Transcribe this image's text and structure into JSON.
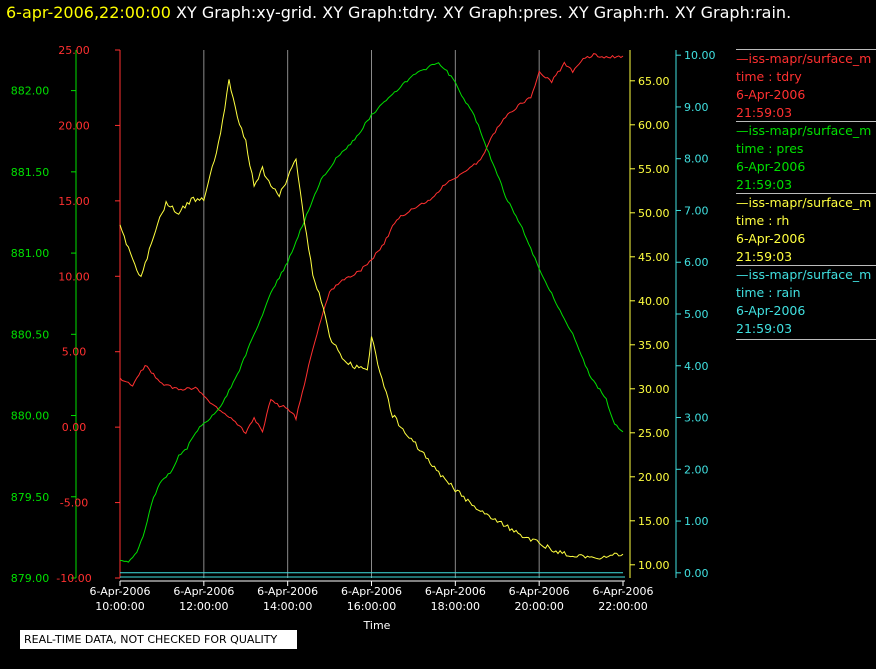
{
  "header": {
    "timestamp": "6-apr-2006,22:00:00",
    "graphs": "XY Graph:xy-grid.  XY Graph:tdry.  XY Graph:pres.  XY Graph:rh.  XY Graph:rain."
  },
  "legend": [
    {
      "name": "—iss-mapr/surface_m",
      "var": "time : tdry",
      "date": "6-Apr-2006",
      "time": "21:59:03",
      "color": "#ff3030"
    },
    {
      "name": "—iss-mapr/surface_m",
      "var": "time : pres",
      "date": "6-Apr-2006",
      "time": "21:59:03",
      "color": "#00e000"
    },
    {
      "name": "—iss-mapr/surface_m",
      "var": "time : rh",
      "date": "6-Apr-2006",
      "time": "21:59:03",
      "color": "#ffff40"
    },
    {
      "name": "—iss-mapr/surface_m",
      "var": "time : rain",
      "date": "6-Apr-2006",
      "time": "21:59:03",
      "color": "#40e0e0"
    }
  ],
  "note": "REAL-TIME DATA, NOT CHECKED FOR QUALITY",
  "chart_data": {
    "type": "line",
    "xlabel": "Time",
    "xlim_hours": [
      10,
      22
    ],
    "x_ticks": [
      {
        "hour": 10,
        "date": "6-Apr-2006",
        "time": "10:00:00"
      },
      {
        "hour": 12,
        "date": "6-Apr-2006",
        "time": "12:00:00"
      },
      {
        "hour": 14,
        "date": "6-Apr-2006",
        "time": "14:00:00"
      },
      {
        "hour": 16,
        "date": "6-Apr-2006",
        "time": "16:00:00"
      },
      {
        "hour": 18,
        "date": "6-Apr-2006",
        "time": "18:00:00"
      },
      {
        "hour": 20,
        "date": "6-Apr-2006",
        "time": "20:00:00"
      },
      {
        "hour": 22,
        "date": "6-Apr-2006",
        "time": "22:00:00"
      }
    ],
    "grid": "vertical",
    "axes": {
      "pres": {
        "color": "#00e000",
        "ylim": [
          879.0,
          882.25
        ],
        "ticks": [
          "879.00",
          "879.50",
          "880.00",
          "880.50",
          "881.00",
          "881.50",
          "882.00"
        ]
      },
      "tdry": {
        "color": "#ff3030",
        "ylim": [
          -10,
          25
        ],
        "ticks": [
          "-10.00",
          "-5.00",
          "0.00",
          "5.00",
          "10.00",
          "15.00",
          "20.00",
          "25.00"
        ]
      },
      "rh": {
        "color": "#ffff40",
        "ylim": [
          8.5,
          68.5
        ],
        "ticks": [
          "10.00",
          "15.00",
          "20.00",
          "25.00",
          "30.00",
          "35.00",
          "40.00",
          "45.00",
          "50.00",
          "55.00",
          "60.00",
          "65.00"
        ]
      },
      "rain": {
        "color": "#40e0e0",
        "ylim": [
          -0.1,
          10.1
        ],
        "ticks": [
          "0.00",
          "1.00",
          "2.00",
          "3.00",
          "4.00",
          "5.00",
          "6.00",
          "7.00",
          "8.00",
          "9.00",
          "10.00"
        ]
      }
    },
    "series": [
      {
        "name": "tdry",
        "axis": "tdry",
        "color": "#ff3030",
        "x": [
          10.0,
          10.3,
          10.6,
          11.0,
          11.4,
          11.8,
          12.1,
          12.4,
          12.7,
          13.0,
          13.2,
          13.4,
          13.6,
          13.8,
          14.0,
          14.2,
          14.4,
          14.7,
          15.0,
          15.3,
          15.7,
          16.0,
          16.3,
          16.6,
          17.0,
          17.4,
          17.8,
          18.2,
          18.6,
          18.9,
          19.2,
          19.5,
          19.8,
          20.0,
          20.3,
          20.6,
          20.8,
          21.0,
          21.3,
          21.6,
          22.0
        ],
        "y": [
          3.2,
          2.8,
          4.1,
          2.9,
          2.5,
          2.6,
          1.8,
          1.1,
          0.5,
          -0.4,
          0.6,
          -0.3,
          1.9,
          1.4,
          1.3,
          0.6,
          2.9,
          6.2,
          9.0,
          9.7,
          10.3,
          11.1,
          12.2,
          13.8,
          14.5,
          15.1,
          16.2,
          16.9,
          17.7,
          19.4,
          20.6,
          21.3,
          21.9,
          23.5,
          22.9,
          24.1,
          23.6,
          24.3,
          24.7,
          24.5,
          24.6
        ]
      },
      {
        "name": "pres",
        "axis": "pres",
        "color": "#00e000",
        "x": [
          10.0,
          10.2,
          10.4,
          10.6,
          10.8,
          11.0,
          11.2,
          11.4,
          11.6,
          11.8,
          12.0,
          12.4,
          12.8,
          13.2,
          13.6,
          14.0,
          14.4,
          14.8,
          15.2,
          15.6,
          16.0,
          16.4,
          16.8,
          17.0,
          17.2,
          17.4,
          17.6,
          17.8,
          18.0,
          18.2,
          18.4,
          18.6,
          18.9,
          19.2,
          19.6,
          20.0,
          20.4,
          20.8,
          21.2,
          21.6,
          21.8,
          22.0
        ],
        "y": [
          879.1,
          879.1,
          879.15,
          879.3,
          879.5,
          879.6,
          879.65,
          879.75,
          879.8,
          879.9,
          879.95,
          880.05,
          880.25,
          880.5,
          880.75,
          880.95,
          881.2,
          881.45,
          881.6,
          881.7,
          881.85,
          881.95,
          882.05,
          882.1,
          882.12,
          882.15,
          882.17,
          882.12,
          882.05,
          881.95,
          881.88,
          881.75,
          881.55,
          881.35,
          881.15,
          880.9,
          880.7,
          880.5,
          880.25,
          880.1,
          879.95,
          879.9
        ]
      },
      {
        "name": "rh",
        "axis": "rh",
        "color": "#ffff40",
        "x": [
          10.0,
          10.2,
          10.5,
          10.8,
          11.1,
          11.4,
          11.7,
          12.0,
          12.2,
          12.4,
          12.6,
          12.8,
          13.0,
          13.2,
          13.4,
          13.6,
          13.8,
          14.0,
          14.2,
          14.4,
          14.6,
          14.8,
          15.0,
          15.3,
          15.6,
          15.9,
          16.0,
          16.2,
          16.5,
          17.0,
          17.5,
          18.0,
          18.5,
          19.0,
          19.5,
          20.0,
          20.4,
          20.8,
          21.2,
          21.6,
          22.0
        ],
        "y": [
          48.5,
          46.0,
          42.5,
          47.5,
          51.0,
          50.0,
          51.5,
          51.5,
          55.0,
          59.0,
          65.0,
          61.0,
          58.0,
          53.0,
          55.0,
          53.0,
          52.0,
          54.0,
          56.0,
          49.0,
          43.0,
          40.0,
          36.0,
          33.5,
          32.5,
          32.0,
          36.0,
          32.0,
          27.0,
          24.0,
          21.0,
          18.5,
          16.5,
          15.0,
          13.5,
          12.5,
          11.5,
          11.0,
          10.8,
          11.0,
          11.2
        ]
      },
      {
        "name": "rain",
        "axis": "rain",
        "color": "#40e0e0",
        "x": [
          10.0,
          22.0
        ],
        "y": [
          0.0,
          0.0
        ]
      }
    ]
  }
}
